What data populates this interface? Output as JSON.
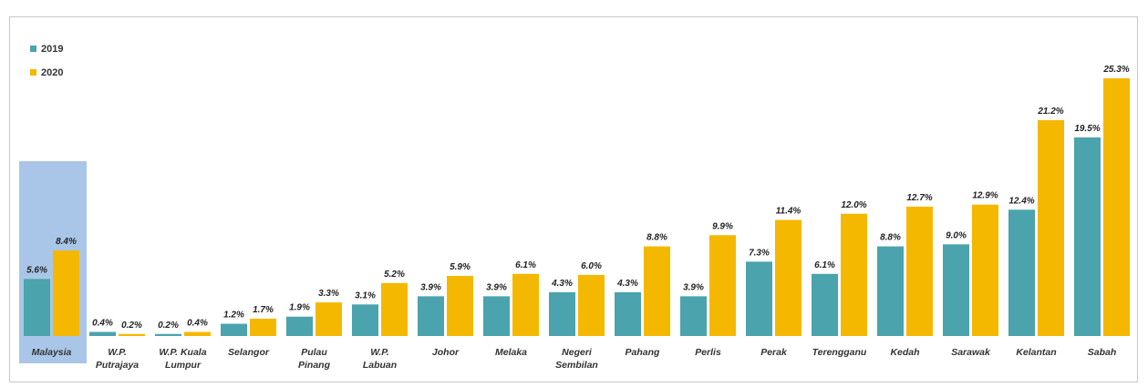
{
  "title": "",
  "chart_data": {
    "type": "bar",
    "categories": [
      "Malaysia",
      "W.P. Putrajaya",
      "W.P. Kuala Lumpur",
      "Selangor",
      "Pulau Pinang",
      "W.P. Labuan",
      "Johor",
      "Melaka",
      "Negeri Sembilan",
      "Pahang",
      "Perlis",
      "Perak",
      "Terengganu",
      "Kedah",
      "Sarawak",
      "Kelantan",
      "Sabah"
    ],
    "category_lines": [
      [
        "Malaysia"
      ],
      [
        "W.P.",
        "Putrajaya"
      ],
      [
        "W.P. Kuala",
        "Lumpur"
      ],
      [
        "Selangor"
      ],
      [
        "Pulau",
        "Pinang"
      ],
      [
        "W.P.",
        "Labuan"
      ],
      [
        "Johor"
      ],
      [
        "Melaka"
      ],
      [
        "Negeri",
        "Sembilan"
      ],
      [
        "Pahang"
      ],
      [
        "Perlis"
      ],
      [
        "Perak"
      ],
      [
        "Terengganu"
      ],
      [
        "Kedah"
      ],
      [
        "Sarawak"
      ],
      [
        "Kelantan"
      ],
      [
        "Sabah"
      ]
    ],
    "series": [
      {
        "name": "2019",
        "color": "#4aa3ad",
        "values": [
          5.6,
          0.4,
          0.2,
          1.2,
          1.9,
          3.1,
          3.9,
          3.9,
          4.3,
          4.3,
          3.9,
          7.3,
          6.1,
          8.8,
          9.0,
          12.4,
          19.5
        ],
        "labels": [
          "5.6%",
          "0.4%",
          "0.2%",
          "1.2%",
          "1.9%",
          "3.1%",
          "3.9%",
          "3.9%",
          "4.3%",
          "4.3%",
          "3.9%",
          "7.3%",
          "6.1%",
          "8.8%",
          "9.0%",
          "12.4%",
          "19.5%"
        ]
      },
      {
        "name": "2020",
        "color": "#f5b800",
        "values": [
          8.4,
          0.2,
          0.4,
          1.7,
          3.3,
          5.2,
          5.9,
          6.1,
          6.0,
          8.8,
          9.9,
          11.4,
          12.0,
          12.7,
          12.9,
          21.2,
          25.3
        ],
        "labels": [
          "8.4%",
          "0.2%",
          "0.4%",
          "1.7%",
          "3.3%",
          "5.2%",
          "5.9%",
          "6.1%",
          "6.0%",
          "8.8%",
          "9.9%",
          "11.4%",
          "12.0%",
          "12.7%",
          "12.9%",
          "21.2%",
          "25.3%"
        ]
      }
    ],
    "highlight_category": "Malaysia",
    "highlight_color": "#a9c6e8",
    "ylim": [
      0,
      25.3
    ],
    "grid": false,
    "legend": "top-left",
    "xlabel": "",
    "ylabel": ""
  }
}
